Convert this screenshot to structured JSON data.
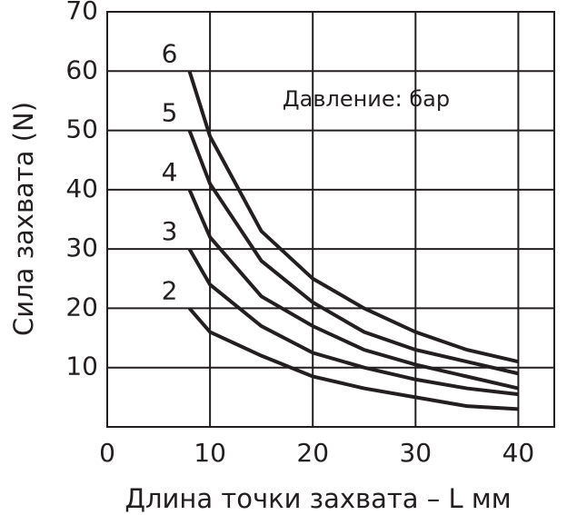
{
  "chart_data": {
    "type": "line",
    "x_label": "Длина точки захвата – L мм",
    "y_label": "Сила захвата (N)",
    "annotation": "Давление: бар",
    "x": [
      8,
      10,
      15,
      20,
      25,
      30,
      35,
      40
    ],
    "series": [
      {
        "name": "6",
        "color": "#231f20",
        "values": [
          60,
          49,
          33,
          25,
          20,
          16,
          13,
          11
        ]
      },
      {
        "name": "5",
        "color": "#231f20",
        "values": [
          50,
          41,
          28,
          21,
          16,
          13,
          11,
          9
        ]
      },
      {
        "name": "4",
        "color": "#231f20",
        "values": [
          40,
          32,
          22,
          17,
          13,
          10.5,
          8.5,
          6.5
        ]
      },
      {
        "name": "3",
        "color": "#231f20",
        "values": [
          30,
          24,
          17,
          12.5,
          10,
          8,
          6.5,
          5.5
        ]
      },
      {
        "name": "2",
        "color": "#231f20",
        "values": [
          20,
          16,
          12,
          8.5,
          6.5,
          5,
          3.5,
          3
        ]
      }
    ],
    "xlim": [
      0,
      43.5
    ],
    "ylim": [
      0,
      70
    ],
    "xticks": [
      0,
      10,
      20,
      30,
      40
    ],
    "yticks": [
      10,
      20,
      30,
      40,
      50,
      60,
      70
    ],
    "grid": true
  }
}
